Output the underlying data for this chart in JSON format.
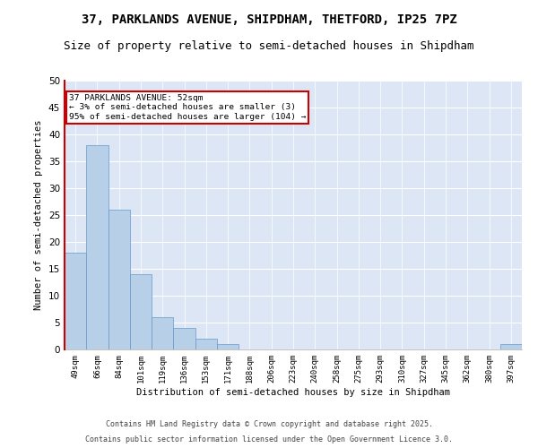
{
  "title": "37, PARKLANDS AVENUE, SHIPDHAM, THETFORD, IP25 7PZ",
  "subtitle": "Size of property relative to semi-detached houses in Shipdham",
  "xlabel": "Distribution of semi-detached houses by size in Shipdham",
  "ylabel": "Number of semi-detached properties",
  "bar_values": [
    18,
    38,
    26,
    14,
    6,
    4,
    2,
    1,
    0,
    0,
    0,
    0,
    0,
    0,
    0,
    0,
    0,
    0,
    0,
    0,
    1
  ],
  "bin_labels": [
    "49sqm",
    "66sqm",
    "84sqm",
    "101sqm",
    "119sqm",
    "136sqm",
    "153sqm",
    "171sqm",
    "188sqm",
    "206sqm",
    "223sqm",
    "240sqm",
    "258sqm",
    "275sqm",
    "293sqm",
    "310sqm",
    "327sqm",
    "345sqm",
    "362sqm",
    "380sqm",
    "397sqm"
  ],
  "bar_color": "#b8cfe8",
  "bar_edge_color": "#6699cc",
  "background_color": "#dce6f5",
  "annotation_text": "37 PARKLANDS AVENUE: 52sqm\n← 3% of semi-detached houses are smaller (3)\n95% of semi-detached houses are larger (104) →",
  "annotation_box_color": "#ffffff",
  "annotation_box_edge": "#cc0000",
  "ylim": [
    0,
    50
  ],
  "yticks": [
    0,
    5,
    10,
    15,
    20,
    25,
    30,
    35,
    40,
    45,
    50
  ],
  "footer_line1": "Contains HM Land Registry data © Crown copyright and database right 2025.",
  "footer_line2": "Contains public sector information licensed under the Open Government Licence 3.0.",
  "title_fontsize": 10,
  "subtitle_fontsize": 9
}
